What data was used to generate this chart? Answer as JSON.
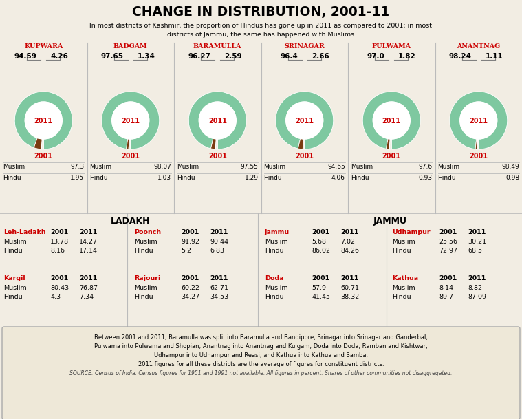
{
  "title": "CHANGE IN DISTRIBUTION, 2001-11",
  "subtitle": "In most districts of Kashmir, the proportion of Hindus has gone up in 2011 as compared to 2001; in most\ndistricts of Jammu, the same has happened with Muslims",
  "kashmir_districts": [
    {
      "name": "Kupwara",
      "muslim_2011": 94.59,
      "hindu_2011": 4.26,
      "muslim_2001": 97.3,
      "hindu_2001": 1.95
    },
    {
      "name": "Badgam",
      "muslim_2011": 97.65,
      "hindu_2011": 1.34,
      "muslim_2001": 98.07,
      "hindu_2001": 1.03
    },
    {
      "name": "Baramulla",
      "muslim_2011": 96.27,
      "hindu_2011": 2.59,
      "muslim_2001": 97.55,
      "hindu_2001": 1.29
    },
    {
      "name": "Srinagar",
      "muslim_2011": 96.4,
      "hindu_2011": 2.66,
      "muslim_2001": 94.65,
      "hindu_2001": 4.06
    },
    {
      "name": "Pulwama",
      "muslim_2011": 97.0,
      "hindu_2011": 1.82,
      "muslim_2001": 97.6,
      "hindu_2001": 0.93
    },
    {
      "name": "Anantnag",
      "muslim_2011": 98.24,
      "hindu_2011": 1.11,
      "muslim_2001": 98.49,
      "hindu_2001": 0.98
    }
  ],
  "ladakh_col1": [
    {
      "name": "Leh-Ladakh",
      "muslim_2001": 13.78,
      "hindu_2001": 8.16,
      "muslim_2011": 14.27,
      "hindu_2011": 17.14
    },
    {
      "name": "Kargil",
      "muslim_2001": 80.43,
      "hindu_2001": 4.3,
      "muslim_2011": 76.87,
      "hindu_2011": 7.34
    }
  ],
  "ladakh_col2": [
    {
      "name": "Poonch",
      "muslim_2001": 91.92,
      "hindu_2001": 5.2,
      "muslim_2011": 90.44,
      "hindu_2011": 6.83
    },
    {
      "name": "Rajouri",
      "muslim_2001": 60.22,
      "hindu_2001": 34.27,
      "muslim_2011": 62.71,
      "hindu_2011": 34.53
    }
  ],
  "jammu_col1": [
    {
      "name": "Jammu",
      "muslim_2001": 5.68,
      "hindu_2001": 86.02,
      "muslim_2011": 7.02,
      "hindu_2011": 84.26
    },
    {
      "name": "Doda",
      "muslim_2001": 57.9,
      "hindu_2001": 41.45,
      "muslim_2011": 60.71,
      "hindu_2011": 38.32
    }
  ],
  "jammu_col2": [
    {
      "name": "Udhampur",
      "muslim_2001": 25.56,
      "hindu_2001": 72.97,
      "muslim_2011": 30.21,
      "hindu_2011": 68.5
    },
    {
      "name": "Kathua",
      "muslim_2001": 8.14,
      "hindu_2001": 89.7,
      "muslim_2011": 8.82,
      "hindu_2011": 87.09
    }
  ],
  "colors": {
    "muslim": "#7ec8a0",
    "hindu": "#7a3b10",
    "red": "#cc0000",
    "bg": "#f2ede3",
    "footnote_bg": "#eee8d8",
    "sep": "#bbbbbb",
    "text": "#111111"
  },
  "footnote": "Between 2001 and 2011, Baramulla was split into Baramulla and Bandipore; Srinagar into Srinagar and Ganderbal;\nPulwama into Pulwama and Shopian; Anantnag into Anantnag and Kulgam; Doda into Doda, Ramban and Kishtwar;\nUdhampur into Udhampur and Reasi; and Kathua into Kathua and Samba.\n2011 figures for all these districts are the average of figures for constituent districts.",
  "source": "SOURCE: Census of India. Census figures for 1951 and 1991 not available. All figures in percent. Shares of other communities not disaggregated."
}
